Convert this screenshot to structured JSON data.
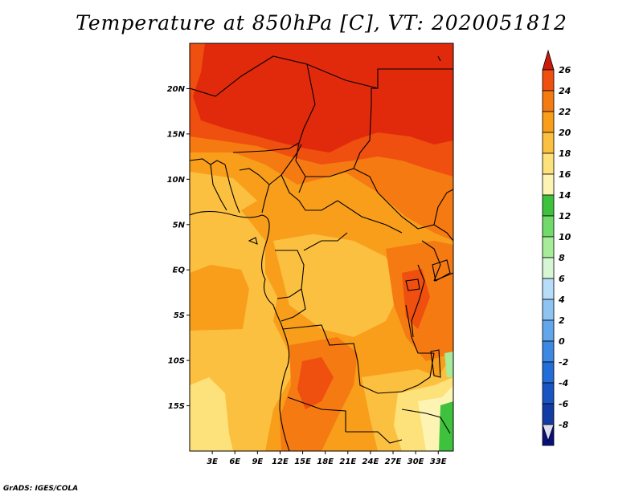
{
  "title": "Temperature at 850hPa [C], VT: 2020051812",
  "credit": "GrADS: IGES/COLA",
  "map": {
    "lat_range": [
      -20,
      25
    ],
    "lon_range": [
      0,
      35
    ],
    "lat_ticks": [
      {
        "label": "20N",
        "lat": 20
      },
      {
        "label": "15N",
        "lat": 15
      },
      {
        "label": "10N",
        "lat": 10
      },
      {
        "label": "5N",
        "lat": 5
      },
      {
        "label": "EQ",
        "lat": 0
      },
      {
        "label": "5S",
        "lat": -5
      },
      {
        "label": "10S",
        "lat": -10
      },
      {
        "label": "15S",
        "lat": -15
      }
    ],
    "lon_ticks": [
      {
        "label": "3E",
        "lon": 3
      },
      {
        "label": "6E",
        "lon": 6
      },
      {
        "label": "9E",
        "lon": 9
      },
      {
        "label": "12E",
        "lon": 12
      },
      {
        "label": "15E",
        "lon": 15
      },
      {
        "label": "18E",
        "lon": 18
      },
      {
        "label": "21E",
        "lon": 21
      },
      {
        "label": "24E",
        "lon": 24
      },
      {
        "label": "27E",
        "lon": 27
      },
      {
        "label": "30E",
        "lon": 30
      },
      {
        "label": "33E",
        "lon": 33
      }
    ]
  },
  "colorbar": {
    "levels": [
      {
        "label": "26",
        "color": "#e12a0c"
      },
      {
        "label": "24",
        "color": "#ef4f0f"
      },
      {
        "label": "22",
        "color": "#f57a12"
      },
      {
        "label": "20",
        "color": "#f89e1a"
      },
      {
        "label": "18",
        "color": "#fcc040"
      },
      {
        "label": "16",
        "color": "#fde17a"
      },
      {
        "label": "14",
        "color": "#fdf4b4"
      },
      {
        "label": "12",
        "color": "#3ec23e"
      },
      {
        "label": "10",
        "color": "#72da6a"
      },
      {
        "label": "8",
        "color": "#a6ec9a"
      },
      {
        "label": "6",
        "color": "#d6f6d4"
      },
      {
        "label": "4",
        "color": "#b8ddf8"
      },
      {
        "label": "2",
        "color": "#8ec4f2"
      },
      {
        "label": "0",
        "color": "#62a6ec"
      },
      {
        "label": "-2",
        "color": "#3d88e2"
      },
      {
        "label": "-4",
        "color": "#236dd8"
      },
      {
        "label": "-6",
        "color": "#1a54c2"
      },
      {
        "label": "-8",
        "color": "#113ca4"
      }
    ],
    "top_color": "#cc1a0a",
    "bottom_color": "#dcdcf4",
    "end_color": "#08107e"
  }
}
